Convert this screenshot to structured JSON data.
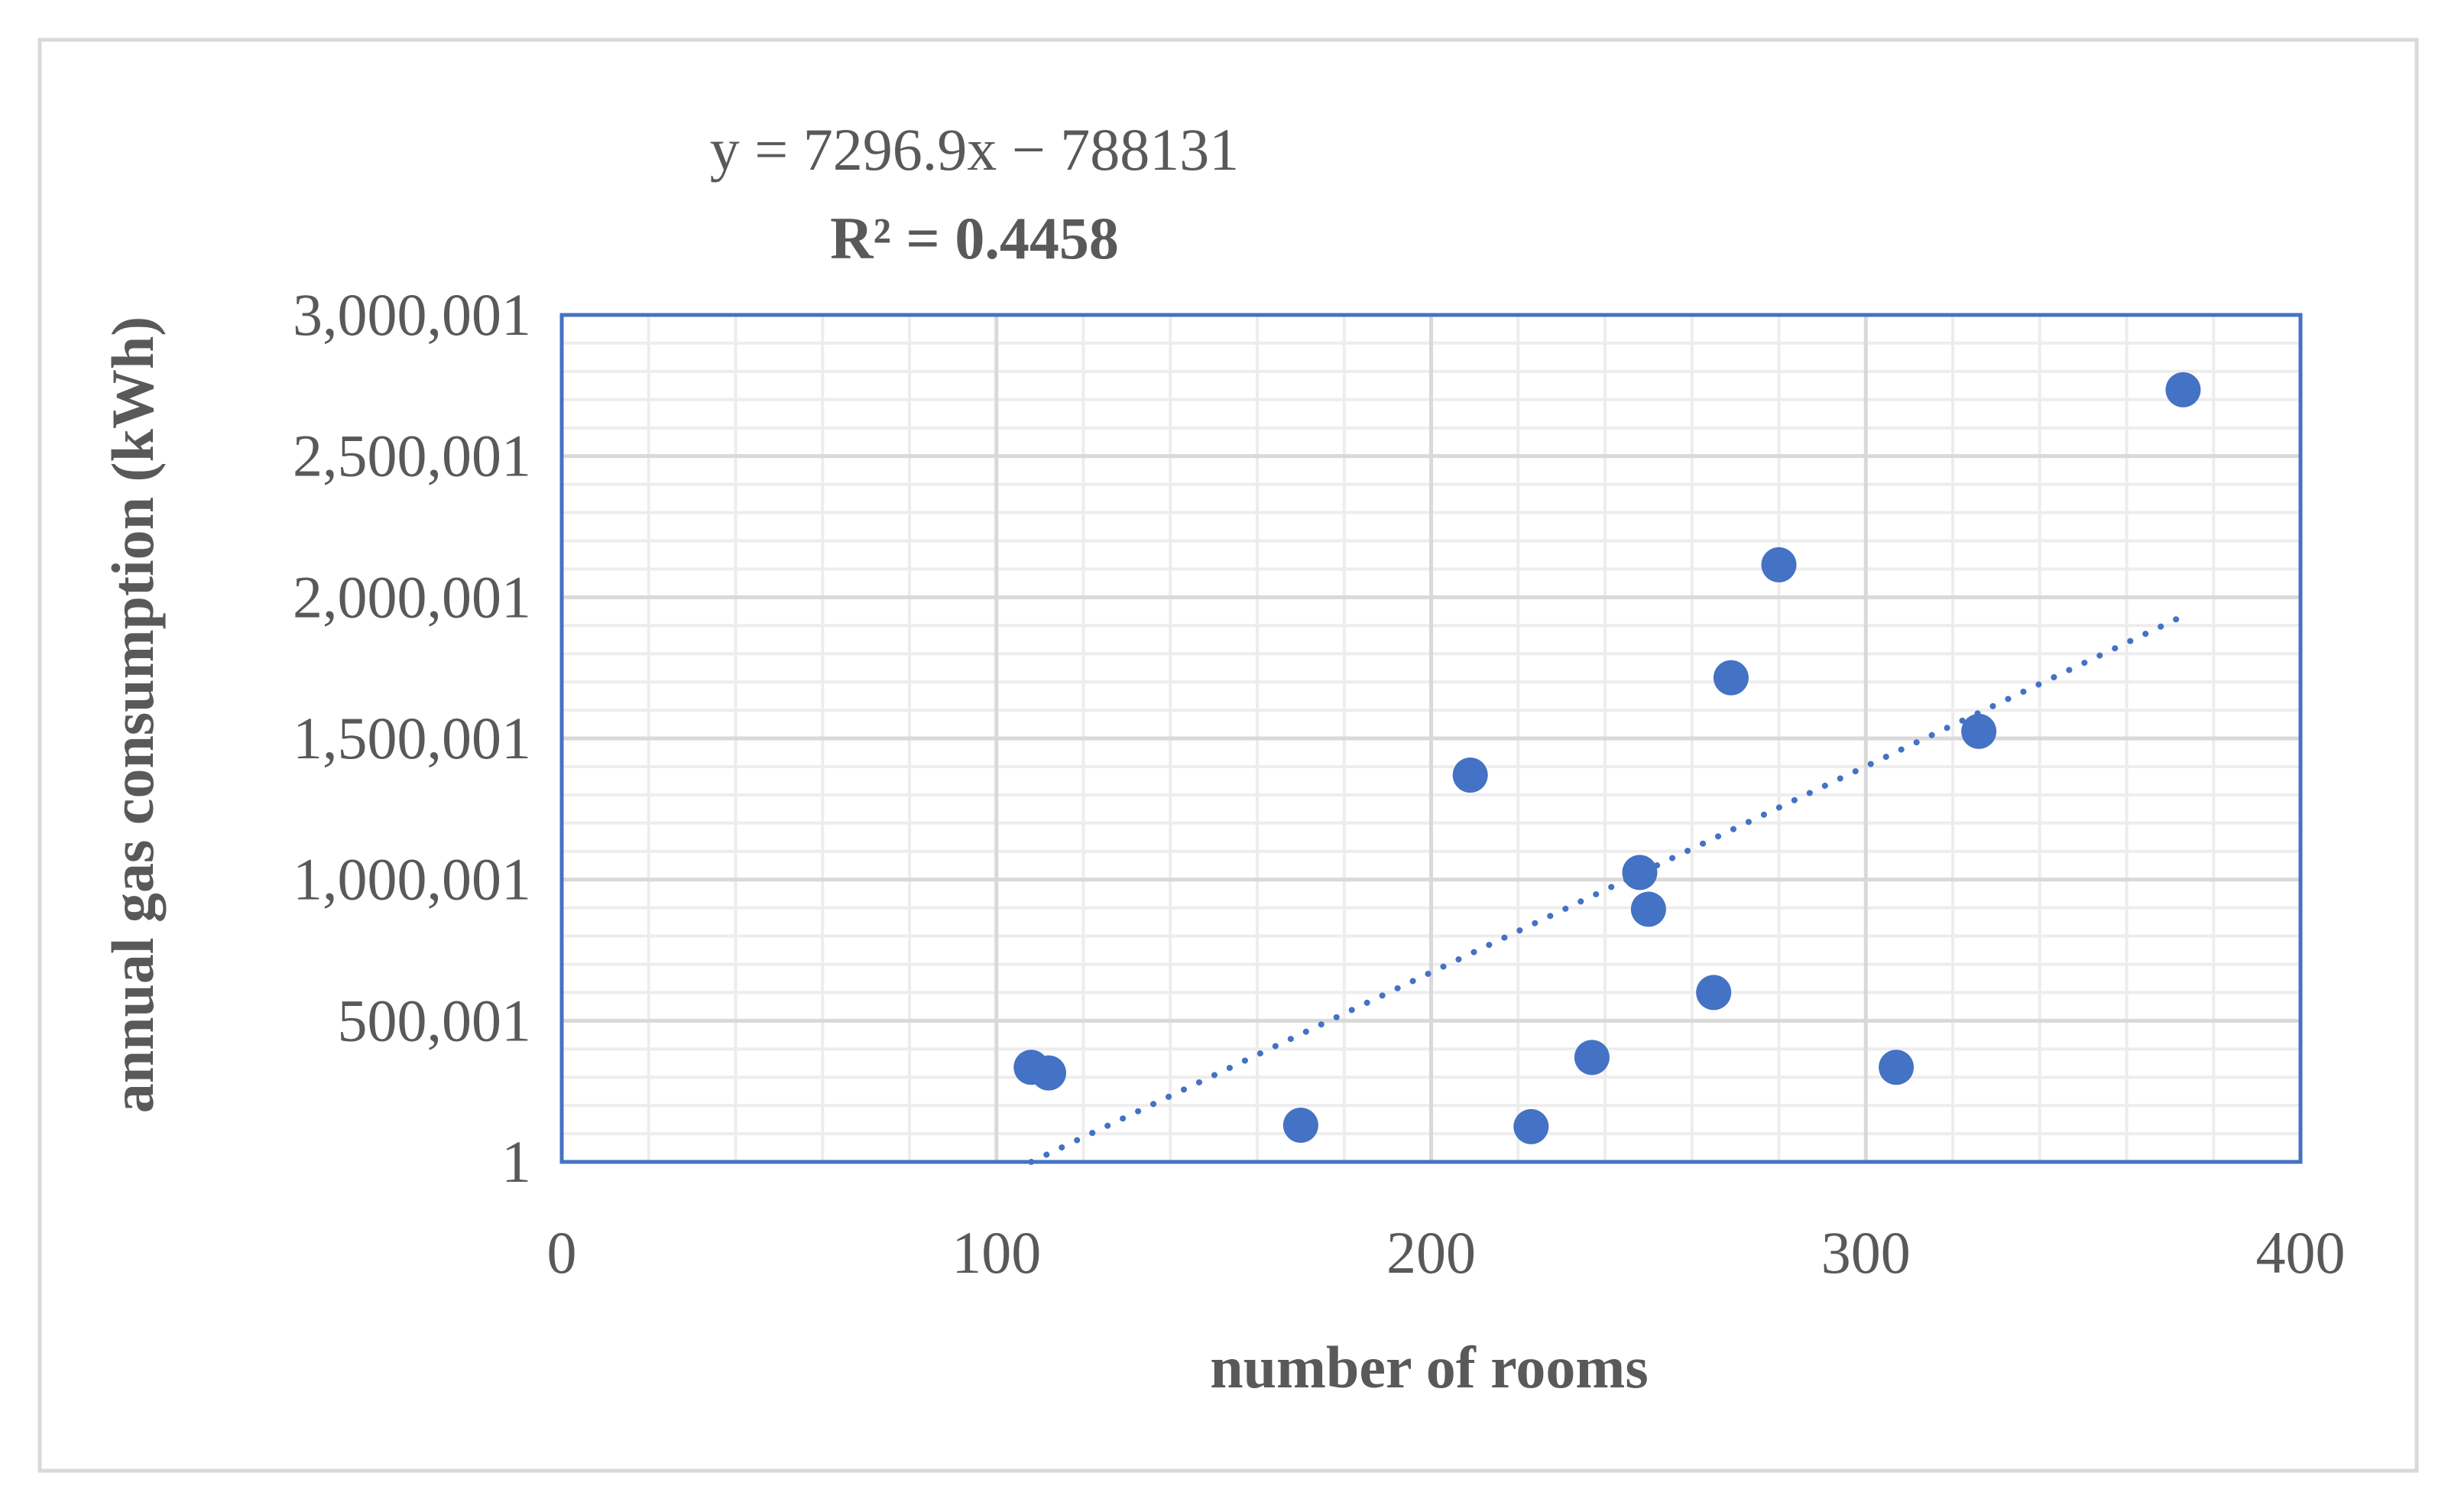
{
  "chart_data": {
    "type": "scatter",
    "title": "",
    "xlabel": "number of rooms",
    "ylabel": "annual gas consumption (kWh)",
    "xlim": [
      0,
      400
    ],
    "ylim": [
      1,
      3000001
    ],
    "x_ticks": [
      0,
      100,
      200,
      300,
      400
    ],
    "x_tick_labels": [
      "0",
      "100",
      "200",
      "300",
      "400"
    ],
    "y_ticks": [
      1,
      500001,
      1000001,
      1500001,
      2000001,
      2500001,
      3000001
    ],
    "y_tick_labels": [
      "1",
      "500,001",
      "1,000,001",
      "1,500,001",
      "2,000,001",
      "2,500,001",
      "3,000,001"
    ],
    "grid": true,
    "series": [
      {
        "color": "#4472C4",
        "points": [
          {
            "x": 108,
            "y": 335000
          },
          {
            "x": 112,
            "y": 315000
          },
          {
            "x": 170,
            "y": 130000
          },
          {
            "x": 209,
            "y": 1370000
          },
          {
            "x": 223,
            "y": 125000
          },
          {
            "x": 237,
            "y": 370000
          },
          {
            "x": 248,
            "y": 1025000
          },
          {
            "x": 250,
            "y": 895000
          },
          {
            "x": 265,
            "y": 600000
          },
          {
            "x": 269,
            "y": 1715000
          },
          {
            "x": 280,
            "y": 2115000
          },
          {
            "x": 307,
            "y": 335000
          },
          {
            "x": 326,
            "y": 1525000
          },
          {
            "x": 373,
            "y": 2735000
          }
        ]
      }
    ],
    "trendline": {
      "type": "linear",
      "slope": 7296.9,
      "intercept": -788131,
      "x_range": [
        108,
        372
      ],
      "color": "#4472C4",
      "style": "dotted",
      "equation_label": "y = 7296.9x − 788131",
      "r2_label": "R² = 0.4458"
    },
    "colors": {
      "plot_border": "#4472C4",
      "grid_major": "#D9D9D9",
      "grid_minor": "#EDEDED",
      "frame_border": "#D9D9D9",
      "axis_line": "#BFBFBF"
    }
  }
}
